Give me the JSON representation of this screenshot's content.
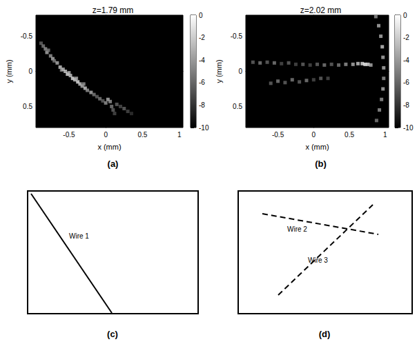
{
  "chart_data": [
    {
      "type": "scatter",
      "panel": "(a)",
      "title": "z=1.79 mm",
      "x_label": "x (mm)",
      "y_label": "y (mm)",
      "xlim": [
        -0.95,
        1.05
      ],
      "xticks": [
        -0.5,
        0,
        0.5,
        1
      ],
      "ylim": [
        -0.8,
        0.8
      ],
      "yticks": [
        -0.5,
        0,
        0.5
      ],
      "marker": "square",
      "points": [
        [
          -0.88,
          -0.4,
          -6
        ],
        [
          -0.85,
          -0.36,
          -5
        ],
        [
          -0.82,
          -0.32,
          -4
        ],
        [
          -0.8,
          -0.27,
          -3
        ],
        [
          -0.78,
          -0.3,
          -5
        ],
        [
          -0.75,
          -0.22,
          -4
        ],
        [
          -0.72,
          -0.18,
          -3
        ],
        [
          -0.7,
          -0.15,
          -5
        ],
        [
          -0.66,
          -0.12,
          -3
        ],
        [
          -0.62,
          -0.06,
          -2
        ],
        [
          -0.6,
          -0.02,
          -4
        ],
        [
          -0.58,
          -0.03,
          -3
        ],
        [
          -0.55,
          0.0,
          -2
        ],
        [
          -0.52,
          0.04,
          -1
        ],
        [
          -0.5,
          0.02,
          -3
        ],
        [
          -0.48,
          0.06,
          -2
        ],
        [
          -0.45,
          0.1,
          -1
        ],
        [
          -0.42,
          0.12,
          -2
        ],
        [
          -0.4,
          0.1,
          -3
        ],
        [
          -0.38,
          0.15,
          -1
        ],
        [
          -0.35,
          0.18,
          -2
        ],
        [
          -0.32,
          0.21,
          -3
        ],
        [
          -0.3,
          0.18,
          -4
        ],
        [
          -0.28,
          0.24,
          -2
        ],
        [
          -0.25,
          0.27,
          -4
        ],
        [
          -0.2,
          0.3,
          -3
        ],
        [
          -0.16,
          0.33,
          -5
        ],
        [
          -0.12,
          0.36,
          -6
        ],
        [
          -0.08,
          0.39,
          -5
        ],
        [
          -0.04,
          0.42,
          -6
        ],
        [
          0.0,
          0.45,
          -4
        ],
        [
          0.03,
          0.4,
          -3
        ],
        [
          0.06,
          0.43,
          -4
        ],
        [
          0.08,
          0.5,
          -5
        ],
        [
          0.1,
          0.55,
          -6
        ],
        [
          0.12,
          0.6,
          -7
        ],
        [
          0.15,
          0.47,
          -6
        ],
        [
          0.2,
          0.5,
          -7
        ],
        [
          0.25,
          0.53,
          -6
        ],
        [
          0.3,
          0.57,
          -7
        ],
        [
          0.35,
          0.6,
          -8
        ]
      ],
      "colorbar": {
        "range": [
          -10,
          0
        ],
        "ticks": [
          0,
          -2,
          -4,
          -6,
          -8,
          -10
        ],
        "colors": [
          "#000000",
          "#ffffff"
        ]
      }
    },
    {
      "type": "scatter",
      "panel": "(b)",
      "title": "z=2.02 mm",
      "x_label": "x (mm)",
      "y_label": "y (mm)",
      "xlim": [
        -0.95,
        1.05
      ],
      "xticks": [
        -0.5,
        0,
        0.5,
        1
      ],
      "ylim": [
        -0.8,
        0.8
      ],
      "yticks": [
        -0.5,
        0,
        0.5
      ],
      "marker": "square",
      "points": [
        [
          -0.85,
          -0.13,
          -6
        ],
        [
          -0.75,
          -0.12,
          -5
        ],
        [
          -0.65,
          -0.13,
          -6
        ],
        [
          -0.55,
          -0.12,
          -5
        ],
        [
          -0.45,
          -0.11,
          -7
        ],
        [
          -0.35,
          -0.12,
          -6
        ],
        [
          -0.25,
          -0.1,
          -7
        ],
        [
          -0.15,
          -0.1,
          -6
        ],
        [
          -0.05,
          -0.09,
          -7
        ],
        [
          0.05,
          -0.1,
          -6
        ],
        [
          0.15,
          -0.09,
          -5
        ],
        [
          0.25,
          -0.1,
          -6
        ],
        [
          0.35,
          -0.09,
          -5
        ],
        [
          0.45,
          -0.1,
          -4
        ],
        [
          0.55,
          -0.1,
          -3
        ],
        [
          0.62,
          -0.11,
          -2
        ],
        [
          0.68,
          -0.11,
          -1
        ],
        [
          0.72,
          -0.1,
          0
        ],
        [
          0.76,
          -0.1,
          -1
        ],
        [
          0.8,
          -0.09,
          -3
        ],
        [
          -0.6,
          0.17,
          -6
        ],
        [
          -0.5,
          0.14,
          -5
        ],
        [
          -0.4,
          0.16,
          -6
        ],
        [
          -0.3,
          0.12,
          -5
        ],
        [
          -0.2,
          0.15,
          -6
        ],
        [
          -0.1,
          0.13,
          -5
        ],
        [
          0.0,
          0.12,
          -7
        ],
        [
          0.1,
          0.1,
          -6
        ],
        [
          0.2,
          0.1,
          -7
        ],
        [
          0.87,
          -0.78,
          -4
        ],
        [
          0.91,
          -0.65,
          -3
        ],
        [
          0.94,
          -0.5,
          -3
        ],
        [
          0.96,
          -0.35,
          -2
        ],
        [
          0.97,
          -0.2,
          -3
        ],
        [
          0.98,
          -0.05,
          -3
        ],
        [
          0.98,
          0.1,
          -4
        ],
        [
          0.97,
          0.25,
          -3
        ],
        [
          0.95,
          0.4,
          -4
        ],
        [
          0.92,
          0.55,
          -4
        ],
        [
          0.88,
          0.7,
          -5
        ]
      ],
      "colorbar": {
        "range": [
          -10,
          0
        ],
        "ticks": [
          0,
          -2,
          -4,
          -6,
          -8,
          -10
        ],
        "colors": [
          "#000000",
          "#ffffff"
        ]
      }
    }
  ],
  "diagrams": [
    {
      "panel": "(c)",
      "wires": [
        {
          "label": "Wire 1",
          "line_style": "solid"
        }
      ]
    },
    {
      "panel": "(d)",
      "wires": [
        {
          "label": "Wire 2",
          "line_style": "dashed"
        },
        {
          "label": "Wire 3",
          "line_style": "dashed"
        }
      ]
    }
  ]
}
